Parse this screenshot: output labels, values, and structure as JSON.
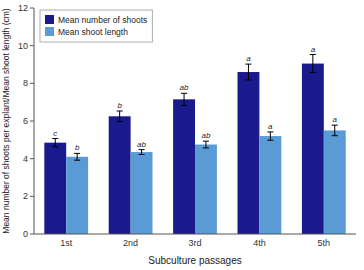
{
  "chart_data": {
    "type": "bar",
    "xlabel": "Subculture passages",
    "ylabel": "Mean number of shoots per explant/Mean shoot length (cm)",
    "categories": [
      "1st",
      "2nd",
      "3rd",
      "4th",
      "5th"
    ],
    "series": [
      {
        "name": "Mean number of shoots",
        "color": "#1A1A8C",
        "values": [
          4.85,
          6.25,
          7.15,
          8.6,
          9.05
        ],
        "errors": [
          0.22,
          0.28,
          0.32,
          0.42,
          0.48
        ],
        "annotations": [
          "c",
          "b",
          "ab",
          "a",
          "a"
        ]
      },
      {
        "name": "Mean shoot length",
        "color": "#5B9BD5",
        "values": [
          4.1,
          4.35,
          4.75,
          5.2,
          5.5
        ],
        "errors": [
          0.18,
          0.13,
          0.18,
          0.22,
          0.28
        ],
        "annotations": [
          "b",
          "ab",
          "ab",
          "a",
          "a"
        ]
      }
    ],
    "ylim": [
      0,
      12
    ],
    "yticks": [
      0,
      2,
      4,
      6,
      8,
      10,
      12
    ],
    "grid": false,
    "legend": "upper-left"
  }
}
